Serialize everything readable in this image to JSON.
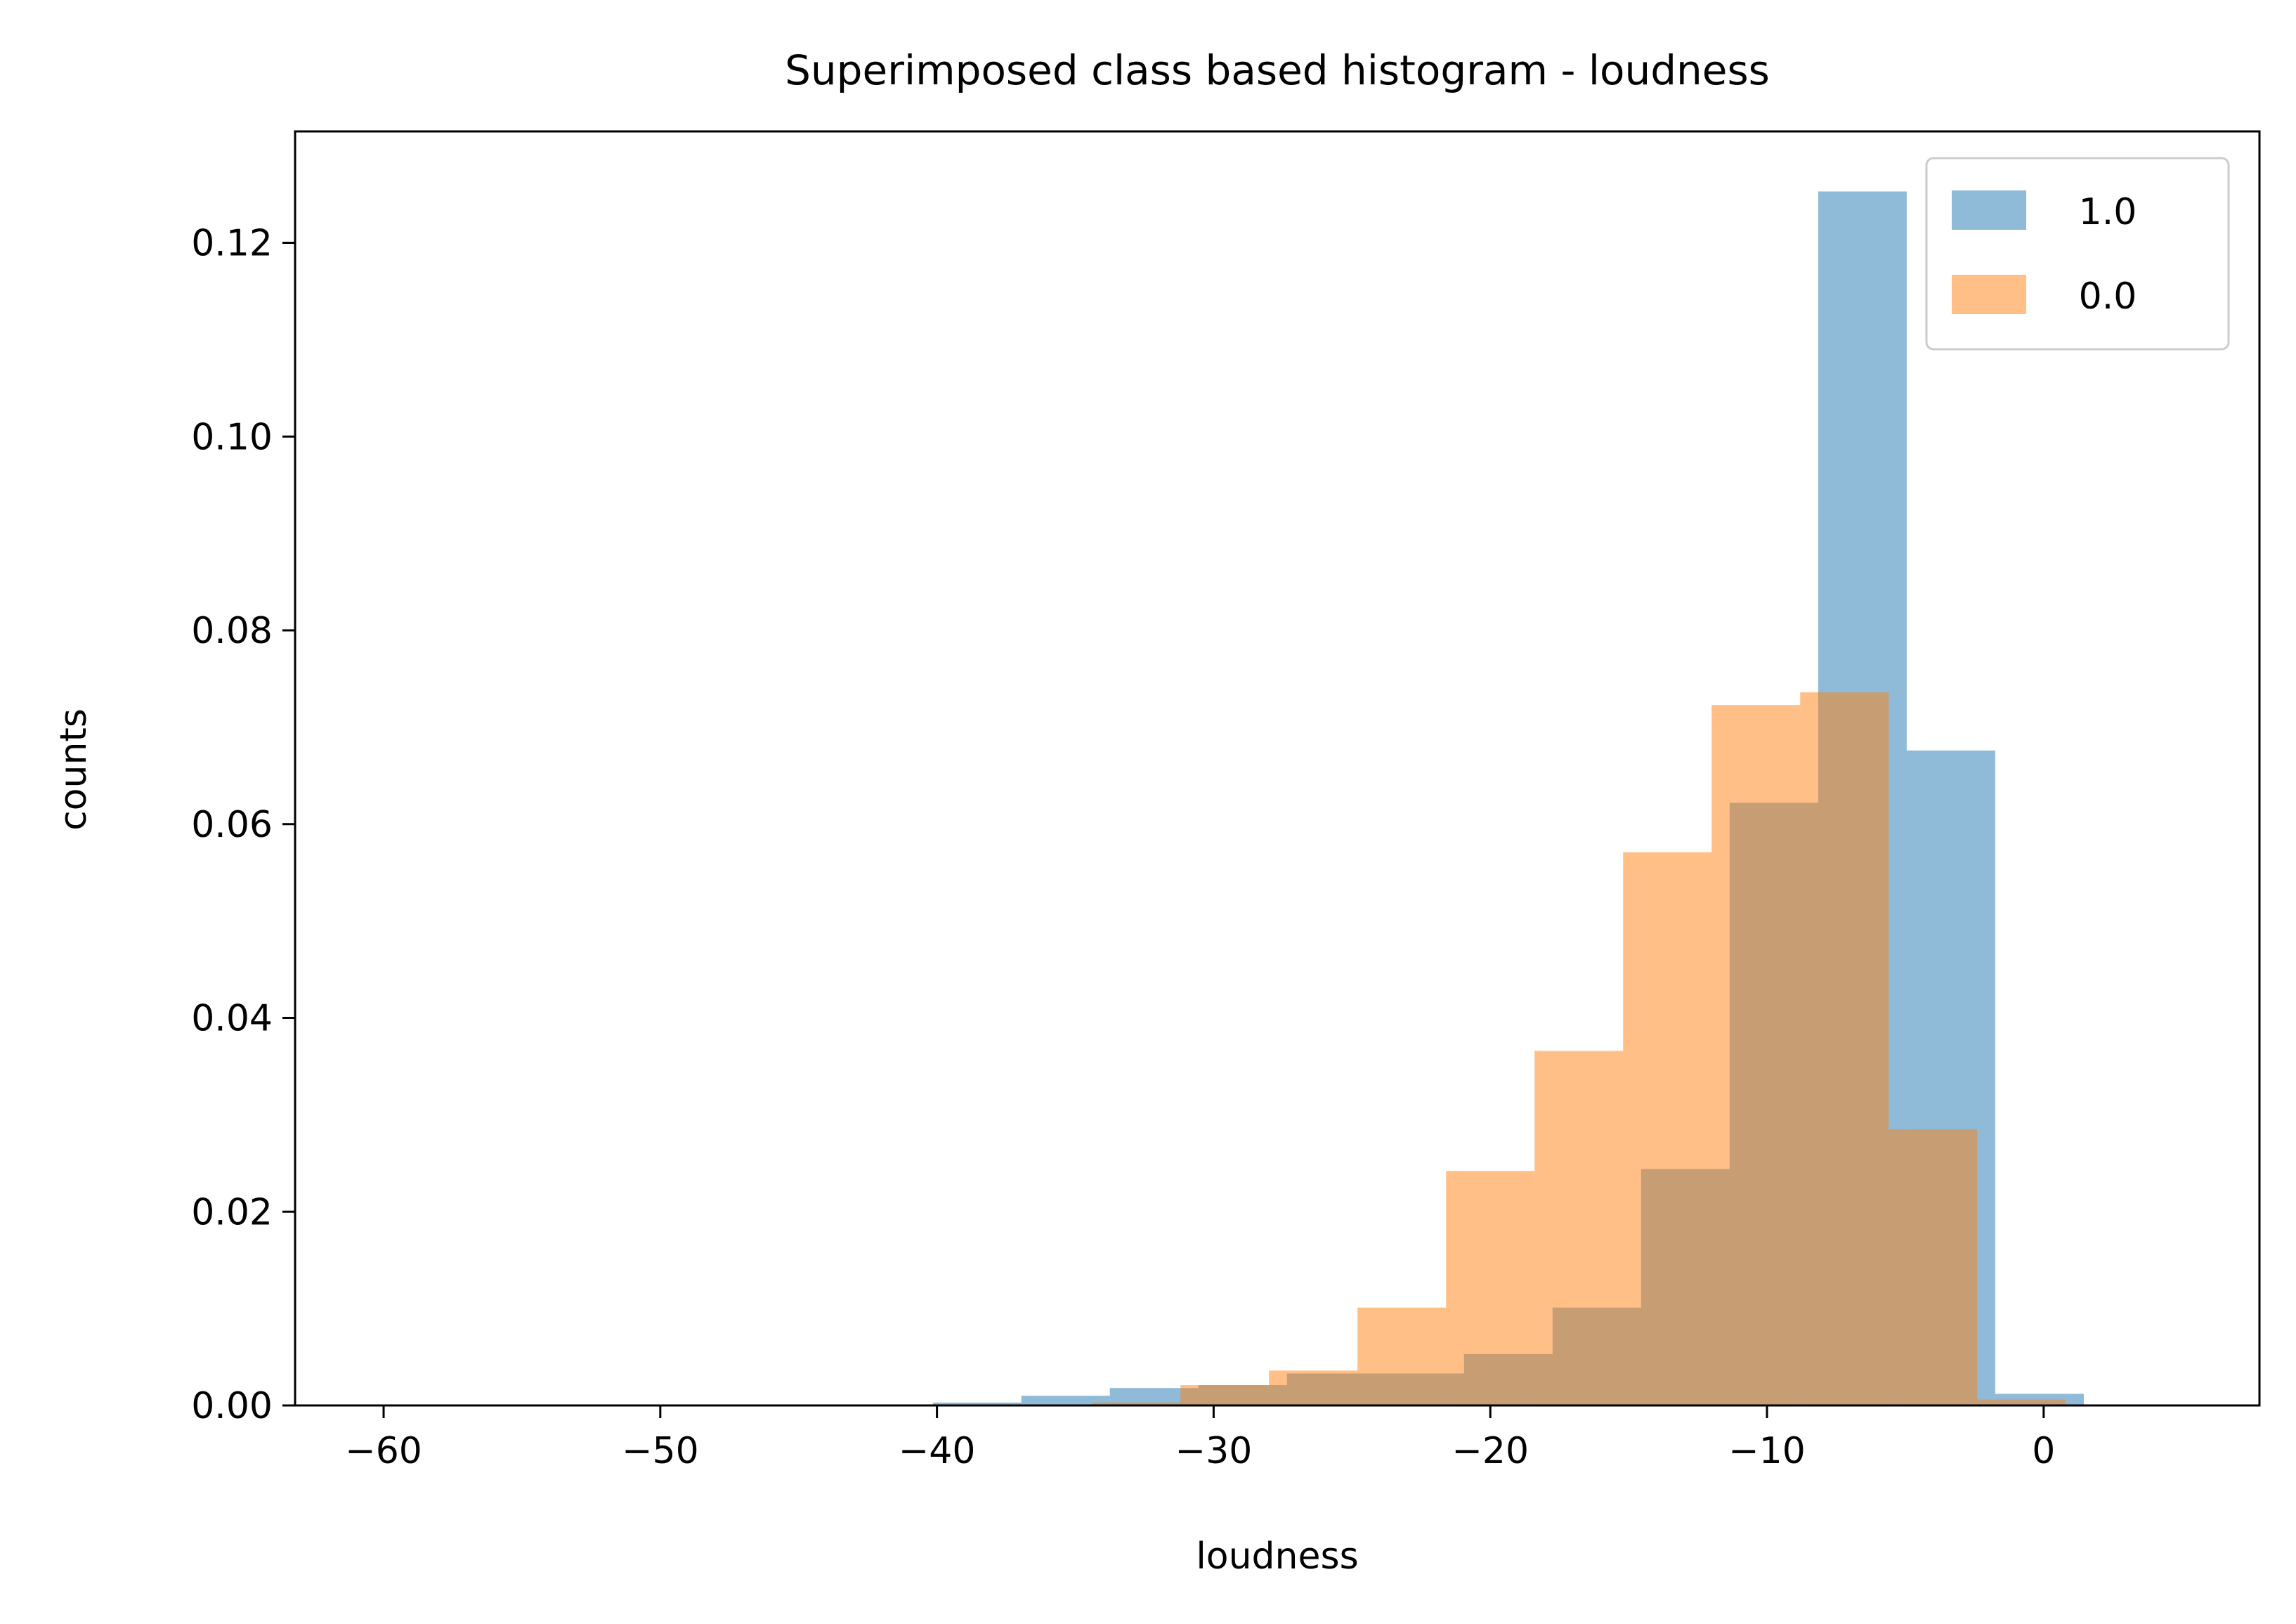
{
  "chart_data": {
    "type": "bar",
    "title": "Superimposed class based histogram - loudness",
    "xlabel": "loudness",
    "ylabel": "counts",
    "xlim": [
      -63.2,
      7.8
    ],
    "ylim": [
      0,
      0.1315
    ],
    "xticks": [
      -60,
      -50,
      -40,
      -30,
      -20,
      -10,
      0
    ],
    "xtick_labels": [
      "−60",
      "−50",
      "−40",
      "−30",
      "−20",
      "−10",
      "0"
    ],
    "yticks": [
      0,
      0.02,
      0.04,
      0.06,
      0.08,
      0.1,
      0.12
    ],
    "ytick_labels": [
      "0.00",
      "0.02",
      "0.04",
      "0.06",
      "0.08",
      "0.10",
      "0.12"
    ],
    "grid": false,
    "legend": "top-right",
    "bin_edges": [
      -60.0,
      -56.8,
      -53.6,
      -50.4,
      -47.2,
      -44.0,
      -40.8,
      -37.6,
      -34.4,
      -31.2,
      -28.0,
      -24.8,
      -21.6,
      -18.4,
      -15.2,
      -12.0,
      -8.8,
      -5.6,
      -2.4,
      0.8
    ],
    "x_offset_by_series": [
      0.65,
      0.0
    ],
    "series": [
      {
        "name": "1.0",
        "color": "#1f77b4",
        "opacity": 0.5,
        "values": [
          0,
          0,
          0,
          0,
          0,
          0,
          0.0003,
          0.001,
          0.0018,
          0.0021,
          0.0033,
          0.0033,
          0.0053,
          0.0101,
          0.0244,
          0.0622,
          0.1253,
          0.0676,
          0.0012
        ]
      },
      {
        "name": "0.0",
        "color": "#ff7f0e",
        "opacity": 0.5,
        "values": [
          0,
          0,
          0,
          0,
          0,
          0,
          0,
          0,
          0.0003,
          0.0021,
          0.0036,
          0.0101,
          0.0242,
          0.0366,
          0.0571,
          0.0723,
          0.0736,
          0.0285,
          0.0006
        ]
      }
    ]
  }
}
